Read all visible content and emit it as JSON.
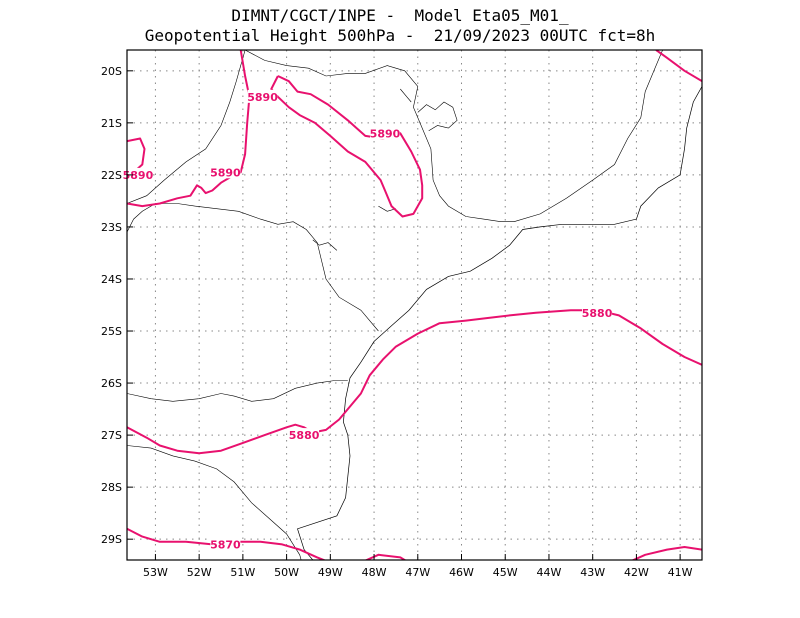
{
  "header": {
    "line1": "DIMNT/CGCT/INPE -  Model Eta05_M01_",
    "line2": "Geopotential Height 500hPa -  21/09/2023 00UTC fct=8h"
  },
  "colors": {
    "contour": "#e8116e",
    "coast": "#000000",
    "grid": "#888888"
  },
  "map": {
    "lon_range": [
      -53.65,
      -40.5
    ],
    "lat_range": [
      -29.4,
      -19.6
    ],
    "lon_ticks": [
      {
        "value": -53,
        "label": "53W"
      },
      {
        "value": -52,
        "label": "52W"
      },
      {
        "value": -51,
        "label": "51W"
      },
      {
        "value": -50,
        "label": "50W"
      },
      {
        "value": -49,
        "label": "49W"
      },
      {
        "value": -48,
        "label": "48W"
      },
      {
        "value": -47,
        "label": "47W"
      },
      {
        "value": -46,
        "label": "46W"
      },
      {
        "value": -45,
        "label": "45W"
      },
      {
        "value": -44,
        "label": "44W"
      },
      {
        "value": -43,
        "label": "43W"
      },
      {
        "value": -42,
        "label": "42W"
      },
      {
        "value": -41,
        "label": "41W"
      }
    ],
    "lat_ticks": [
      {
        "value": -20,
        "label": "20S"
      },
      {
        "value": -21,
        "label": "21S"
      },
      {
        "value": -22,
        "label": "22S"
      },
      {
        "value": -23,
        "label": "23S"
      },
      {
        "value": -24,
        "label": "24S"
      },
      {
        "value": -25,
        "label": "25S"
      },
      {
        "value": -26,
        "label": "26S"
      },
      {
        "value": -27,
        "label": "27S"
      },
      {
        "value": -28,
        "label": "28S"
      },
      {
        "value": -29,
        "label": "29S"
      }
    ],
    "contours": [
      {
        "level": "5890",
        "pts": [
          [
            -53.65,
            -22.55
          ],
          [
            -53.3,
            -22.6
          ],
          [
            -52.9,
            -22.55
          ],
          [
            -52.5,
            -22.45
          ],
          [
            -52.2,
            -22.4
          ],
          [
            -52.05,
            -22.2
          ],
          [
            -51.95,
            -22.25
          ],
          [
            -51.85,
            -22.35
          ],
          [
            -51.7,
            -22.3
          ],
          [
            -51.5,
            -22.15
          ],
          [
            -51.3,
            -22.05
          ],
          [
            -51.05,
            -21.95
          ],
          [
            -50.95,
            -21.6
          ],
          [
            -50.9,
            -21.0
          ],
          [
            -50.85,
            -20.5
          ],
          [
            -50.95,
            -20.1
          ],
          [
            -51.05,
            -19.6
          ]
        ]
      },
      {
        "level": "5890",
        "pts": [
          [
            -53.65,
            -21.35
          ],
          [
            -53.35,
            -21.3
          ],
          [
            -53.25,
            -21.5
          ],
          [
            -53.3,
            -21.8
          ],
          [
            -53.5,
            -21.95
          ],
          [
            -53.65,
            -22.0
          ]
        ]
      },
      {
        "level": "5890",
        "pts": [
          [
            -50.2,
            -20.1
          ],
          [
            -49.95,
            -20.2
          ],
          [
            -49.75,
            -20.4
          ],
          [
            -49.45,
            -20.45
          ],
          [
            -49.05,
            -20.65
          ],
          [
            -48.6,
            -20.95
          ],
          [
            -48.2,
            -21.25
          ],
          [
            -47.8,
            -21.3
          ],
          [
            -47.4,
            -21.2
          ],
          [
            -47.15,
            -21.55
          ],
          [
            -46.95,
            -21.9
          ],
          [
            -46.9,
            -22.2
          ],
          [
            -46.9,
            -22.45
          ],
          [
            -47.1,
            -22.75
          ],
          [
            -47.35,
            -22.8
          ],
          [
            -47.6,
            -22.6
          ],
          [
            -47.75,
            -22.3
          ],
          [
            -47.85,
            -22.1
          ],
          [
            -48.2,
            -21.75
          ],
          [
            -48.6,
            -21.55
          ],
          [
            -49.0,
            -21.25
          ],
          [
            -49.35,
            -21.0
          ],
          [
            -49.7,
            -20.85
          ],
          [
            -49.95,
            -20.7
          ],
          [
            -50.2,
            -20.5
          ],
          [
            -50.35,
            -20.35
          ],
          [
            -50.2,
            -20.1
          ]
        ]
      },
      {
        "level": "5880",
        "pts": [
          [
            -53.65,
            -26.85
          ],
          [
            -53.2,
            -27.05
          ],
          [
            -52.9,
            -27.2
          ],
          [
            -52.5,
            -27.3
          ],
          [
            -52.0,
            -27.35
          ],
          [
            -51.5,
            -27.3
          ],
          [
            -51.0,
            -27.15
          ],
          [
            -50.5,
            -27.0
          ],
          [
            -50.0,
            -26.85
          ],
          [
            -49.8,
            -26.8
          ],
          [
            -49.6,
            -26.85
          ],
          [
            -49.4,
            -26.95
          ],
          [
            -49.1,
            -26.9
          ],
          [
            -48.8,
            -26.7
          ],
          [
            -48.55,
            -26.45
          ],
          [
            -48.3,
            -26.2
          ],
          [
            -48.1,
            -25.85
          ],
          [
            -47.8,
            -25.55
          ],
          [
            -47.5,
            -25.3
          ],
          [
            -47.0,
            -25.05
          ],
          [
            -46.5,
            -24.85
          ],
          [
            -45.9,
            -24.8
          ],
          [
            -45.4,
            -24.75
          ],
          [
            -44.9,
            -24.7
          ],
          [
            -44.3,
            -24.65
          ],
          [
            -43.5,
            -24.6
          ],
          [
            -42.9,
            -24.6
          ],
          [
            -42.4,
            -24.7
          ],
          [
            -41.9,
            -24.95
          ],
          [
            -41.4,
            -25.25
          ],
          [
            -40.9,
            -25.5
          ],
          [
            -40.5,
            -25.65
          ]
        ]
      },
      {
        "level": "5870",
        "pts": [
          [
            -53.65,
            -28.8
          ],
          [
            -53.3,
            -28.95
          ],
          [
            -52.9,
            -29.05
          ],
          [
            -52.3,
            -29.05
          ],
          [
            -51.7,
            -29.1
          ],
          [
            -51.2,
            -29.05
          ],
          [
            -50.6,
            -29.05
          ],
          [
            -50.1,
            -29.1
          ],
          [
            -49.7,
            -29.2
          ],
          [
            -49.3,
            -29.35
          ],
          [
            -49.0,
            -29.45
          ]
        ]
      },
      {
        "level": "",
        "pts": [
          [
            -48.3,
            -29.45
          ],
          [
            -47.9,
            -29.3
          ],
          [
            -47.4,
            -29.35
          ],
          [
            -47.1,
            -29.5
          ]
        ]
      },
      {
        "level": "",
        "pts": [
          [
            -42.2,
            -29.45
          ],
          [
            -41.8,
            -29.3
          ],
          [
            -41.3,
            -29.2
          ],
          [
            -40.9,
            -29.15
          ],
          [
            -40.5,
            -29.2
          ]
        ]
      },
      {
        "level": "",
        "pts": [
          [
            -41.55,
            -19.6
          ],
          [
            -41.3,
            -19.75
          ],
          [
            -40.9,
            -20.0
          ],
          [
            -40.5,
            -20.2
          ]
        ]
      }
    ],
    "contour_labels": [
      {
        "text": "5890",
        "lon": -50.55,
        "lat": -20.5
      },
      {
        "text": "5890",
        "lon": -47.75,
        "lat": -21.2
      },
      {
        "text": "5890",
        "lon": -51.4,
        "lat": -21.95
      },
      {
        "text": "5890",
        "lon": -53.4,
        "lat": -22.0
      },
      {
        "text": "5880",
        "lon": -42.9,
        "lat": -24.65
      },
      {
        "text": "5880",
        "lon": -49.6,
        "lat": -27.0
      },
      {
        "text": "5870",
        "lon": -51.4,
        "lat": -29.1
      }
    ],
    "coastline": [
      [
        -49.35,
        -29.45
      ],
      [
        -49.6,
        -29.2
      ],
      [
        -49.75,
        -28.8
      ],
      [
        -48.85,
        -28.55
      ],
      [
        -48.65,
        -28.2
      ],
      [
        -48.6,
        -27.8
      ],
      [
        -48.55,
        -27.4
      ],
      [
        -48.6,
        -27.0
      ],
      [
        -48.7,
        -26.75
      ],
      [
        -48.65,
        -26.3
      ],
      [
        -48.55,
        -25.9
      ],
      [
        -48.3,
        -25.6
      ],
      [
        -48.0,
        -25.2
      ],
      [
        -47.6,
        -24.9
      ],
      [
        -47.2,
        -24.6
      ],
      [
        -46.8,
        -24.2
      ],
      [
        -46.3,
        -23.95
      ],
      [
        -45.8,
        -23.85
      ],
      [
        -45.3,
        -23.6
      ],
      [
        -44.9,
        -23.35
      ],
      [
        -44.6,
        -23.05
      ],
      [
        -44.2,
        -23.0
      ],
      [
        -43.7,
        -22.95
      ],
      [
        -43.15,
        -22.95
      ],
      [
        -42.5,
        -22.95
      ],
      [
        -42.0,
        -22.85
      ],
      [
        -41.9,
        -22.6
      ],
      [
        -41.5,
        -22.25
      ],
      [
        -41.0,
        -22.0
      ],
      [
        -40.9,
        -21.5
      ],
      [
        -40.85,
        -21.1
      ],
      [
        -40.7,
        -20.6
      ],
      [
        -40.5,
        -20.3
      ]
    ],
    "borders": [
      [
        [
          -53.65,
          -23.1
        ],
        [
          -53.5,
          -22.85
        ],
        [
          -53.3,
          -22.7
        ],
        [
          -53.0,
          -22.55
        ],
        [
          -52.5,
          -22.55
        ],
        [
          -52.1,
          -22.6
        ],
        [
          -51.6,
          -22.65
        ],
        [
          -51.1,
          -22.7
        ],
        [
          -50.6,
          -22.85
        ],
        [
          -50.2,
          -22.95
        ],
        [
          -49.85,
          -22.9
        ],
        [
          -49.55,
          -23.05
        ],
        [
          -49.3,
          -23.3
        ],
        [
          -49.2,
          -23.65
        ],
        [
          -49.1,
          -24.0
        ],
        [
          -48.8,
          -24.35
        ],
        [
          -48.3,
          -24.6
        ],
        [
          -47.9,
          -25.0
        ]
      ],
      [
        [
          -50.95,
          -19.6
        ],
        [
          -51.15,
          -20.2
        ],
        [
          -51.3,
          -20.6
        ],
        [
          -51.5,
          -21.05
        ],
        [
          -51.85,
          -21.5
        ],
        [
          -52.3,
          -21.75
        ],
        [
          -52.8,
          -22.1
        ],
        [
          -53.2,
          -22.4
        ],
        [
          -53.65,
          -22.55
        ]
      ],
      [
        [
          -50.95,
          -19.6
        ],
        [
          -50.5,
          -19.8
        ],
        [
          -50.0,
          -19.9
        ],
        [
          -49.5,
          -19.95
        ],
        [
          -49.1,
          -20.1
        ],
        [
          -48.6,
          -20.05
        ],
        [
          -48.2,
          -20.05
        ],
        [
          -47.7,
          -19.9
        ],
        [
          -47.3,
          -20.0
        ],
        [
          -47.0,
          -20.3
        ],
        [
          -47.1,
          -20.7
        ],
        [
          -46.9,
          -21.1
        ],
        [
          -46.7,
          -21.5
        ],
        [
          -46.65,
          -22.1
        ],
        [
          -46.5,
          -22.4
        ],
        [
          -46.3,
          -22.6
        ],
        [
          -45.9,
          -22.8
        ],
        [
          -45.5,
          -22.85
        ],
        [
          -45.1,
          -22.9
        ],
        [
          -44.8,
          -22.9
        ]
      ],
      [
        [
          -44.8,
          -22.9
        ],
        [
          -44.2,
          -22.75
        ],
        [
          -43.6,
          -22.45
        ],
        [
          -43.0,
          -22.1
        ],
        [
          -42.5,
          -21.8
        ],
        [
          -42.2,
          -21.3
        ],
        [
          -41.9,
          -20.9
        ],
        [
          -41.8,
          -20.4
        ],
        [
          -41.6,
          -20.0
        ],
        [
          -41.4,
          -19.6
        ]
      ],
      [
        [
          -53.65,
          -26.2
        ],
        [
          -53.1,
          -26.3
        ],
        [
          -52.6,
          -26.35
        ],
        [
          -52.0,
          -26.3
        ],
        [
          -51.5,
          -26.2
        ],
        [
          -51.2,
          -26.25
        ],
        [
          -50.8,
          -26.35
        ],
        [
          -50.3,
          -26.3
        ],
        [
          -49.8,
          -26.1
        ],
        [
          -49.3,
          -26.0
        ],
        [
          -48.9,
          -25.95
        ],
        [
          -48.6,
          -25.95
        ]
      ],
      [
        [
          -53.65,
          -27.2
        ],
        [
          -53.1,
          -27.25
        ],
        [
          -52.6,
          -27.4
        ],
        [
          -52.1,
          -27.5
        ],
        [
          -51.6,
          -27.65
        ],
        [
          -51.2,
          -27.9
        ],
        [
          -50.8,
          -28.3
        ],
        [
          -50.4,
          -28.6
        ],
        [
          -50.0,
          -28.9
        ],
        [
          -49.7,
          -29.3
        ],
        [
          -49.65,
          -29.45
        ]
      ]
    ],
    "lakes": [
      [
        [
          -47.0,
          -20.8
        ],
        [
          -46.8,
          -20.65
        ],
        [
          -46.6,
          -20.75
        ],
        [
          -46.4,
          -20.6
        ],
        [
          -46.2,
          -20.7
        ],
        [
          -46.1,
          -20.95
        ],
        [
          -46.3,
          -21.1
        ],
        [
          -46.55,
          -21.05
        ],
        [
          -46.75,
          -21.15
        ]
      ],
      [
        [
          -49.4,
          -23.25
        ],
        [
          -49.25,
          -23.35
        ],
        [
          -49.05,
          -23.3
        ],
        [
          -48.85,
          -23.45
        ]
      ],
      [
        [
          -47.9,
          -22.6
        ],
        [
          -47.7,
          -22.7
        ],
        [
          -47.5,
          -22.65
        ]
      ],
      [
        [
          -47.4,
          -20.35
        ],
        [
          -47.25,
          -20.5
        ],
        [
          -47.15,
          -20.6
        ]
      ]
    ]
  }
}
